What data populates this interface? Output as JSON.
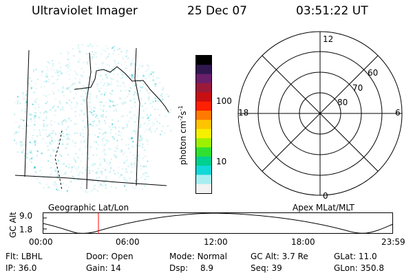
{
  "header": {
    "title": "Ultraviolet Imager",
    "date": "25 Dec 07",
    "time": "03:51:22 UT"
  },
  "colorbar": {
    "label": "photon cm",
    "label_sup1": "-2",
    "label_mid": "s",
    "label_sup2": "-1",
    "ticks": [
      "100",
      "10"
    ],
    "colors": [
      "#000000",
      "#30184f",
      "#6a1f6a",
      "#9b1a3a",
      "#c80f12",
      "#ff2000",
      "#ff7a00",
      "#ffc400",
      "#f6f000",
      "#9df000",
      "#30e030",
      "#00d090",
      "#12d8d8",
      "#a8eef0",
      "#f2f2f2"
    ]
  },
  "polar_grid": {
    "mlt_labels": {
      "top": "12",
      "left": "18",
      "right": "6",
      "bottom": "0"
    },
    "lat_labels": [
      "60",
      "70",
      "80"
    ]
  },
  "timeline": {
    "left_title": "Geographic Lat/Lon",
    "right_title": "Apex MLat/MLT",
    "ylabel": "GC Alt",
    "y_ticks": [
      "9.0",
      "1.8"
    ],
    "x_ticks": [
      "00:00",
      "06:00",
      "12:00",
      "18:00",
      "23:59"
    ],
    "marker_color": "#ff0000"
  },
  "footer": {
    "row1": [
      {
        "label": "Flt:",
        "value": "LBHL"
      },
      {
        "label": "Door:",
        "value": "Open"
      },
      {
        "label": "Mode:",
        "value": "Normal"
      },
      {
        "label": "GC Alt:",
        "value": "3.7 Re"
      },
      {
        "label": "GLat:",
        "value": "11.0"
      }
    ],
    "row2": [
      {
        "label": "IP:",
        "value": "36.0"
      },
      {
        "label": "Gain:",
        "value": "14"
      },
      {
        "label": "Dsp:",
        "value": "8.9"
      },
      {
        "label": "Seq:",
        "value": "39"
      },
      {
        "label": "GLon:",
        "value": "350.8"
      }
    ]
  }
}
